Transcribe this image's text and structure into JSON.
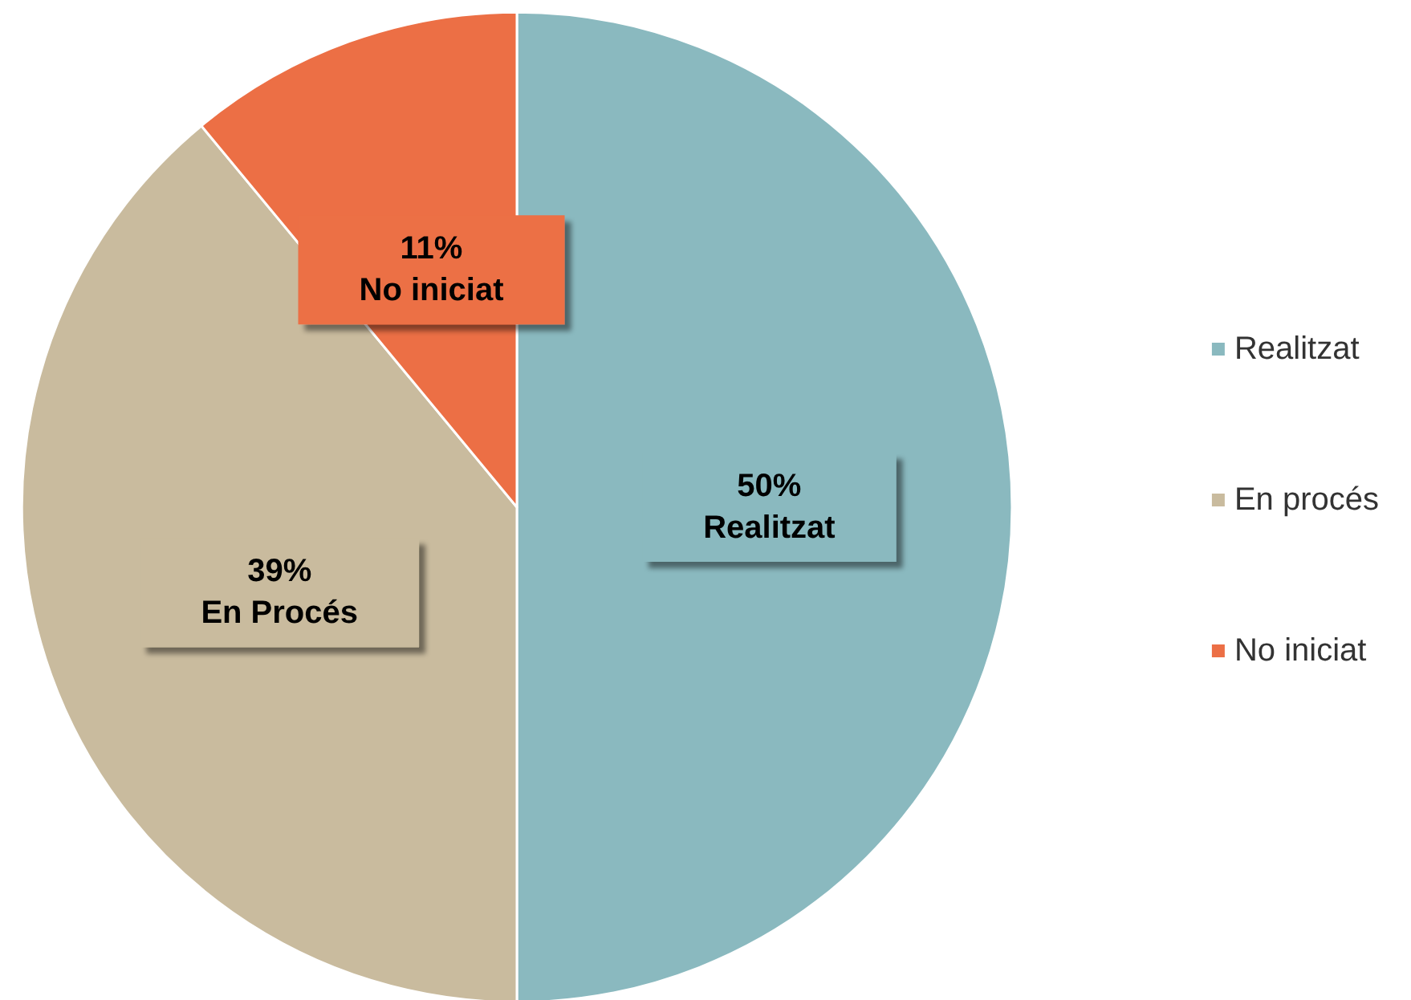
{
  "chart_data": {
    "type": "pie",
    "categories": [
      "Realitzat",
      "En procés",
      "No iniciat"
    ],
    "values": [
      50,
      39,
      11
    ],
    "colors": [
      "#8ab9bf",
      "#c9bb9e",
      "#ec6f45"
    ],
    "value_labels": [
      "50%\nRealitzat",
      "39%\nEn Procés",
      "11%\nNo iniciat"
    ],
    "legend": "right"
  }
}
